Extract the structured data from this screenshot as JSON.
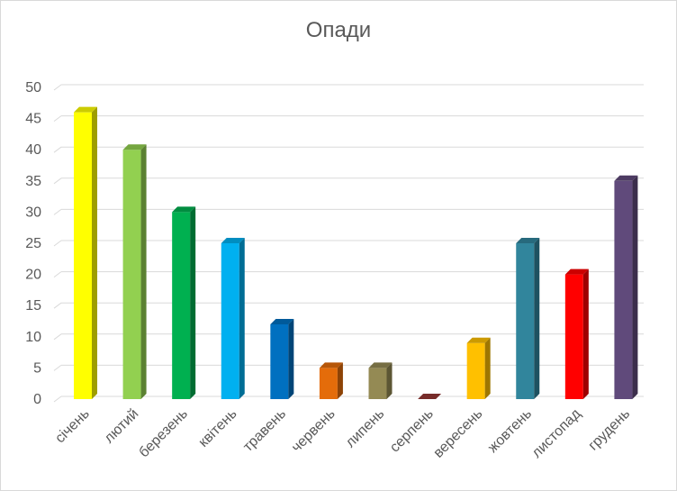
{
  "chart_data": {
    "type": "bar",
    "title": "Опади",
    "xlabel": "",
    "ylabel": "",
    "ylim": [
      0,
      50
    ],
    "yticks": [
      0,
      5,
      10,
      15,
      20,
      25,
      30,
      35,
      40,
      45,
      50
    ],
    "grid": true,
    "legend": "none",
    "categories": [
      "січень",
      "лютий",
      "березень",
      "квітень",
      "травень",
      "червень",
      "липень",
      "серпень",
      "вересень",
      "жовтень",
      "листопад",
      "грудень"
    ],
    "values": [
      46,
      40,
      30,
      25,
      12,
      5,
      5,
      0,
      9,
      25,
      20,
      35
    ],
    "colors": [
      "#ffff00",
      "#92d050",
      "#00b050",
      "#00b0f0",
      "#0070c0",
      "#e46c0a",
      "#948a54",
      "#953735",
      "#ffc000",
      "#31859c",
      "#ff0000",
      "#604a7b"
    ]
  }
}
